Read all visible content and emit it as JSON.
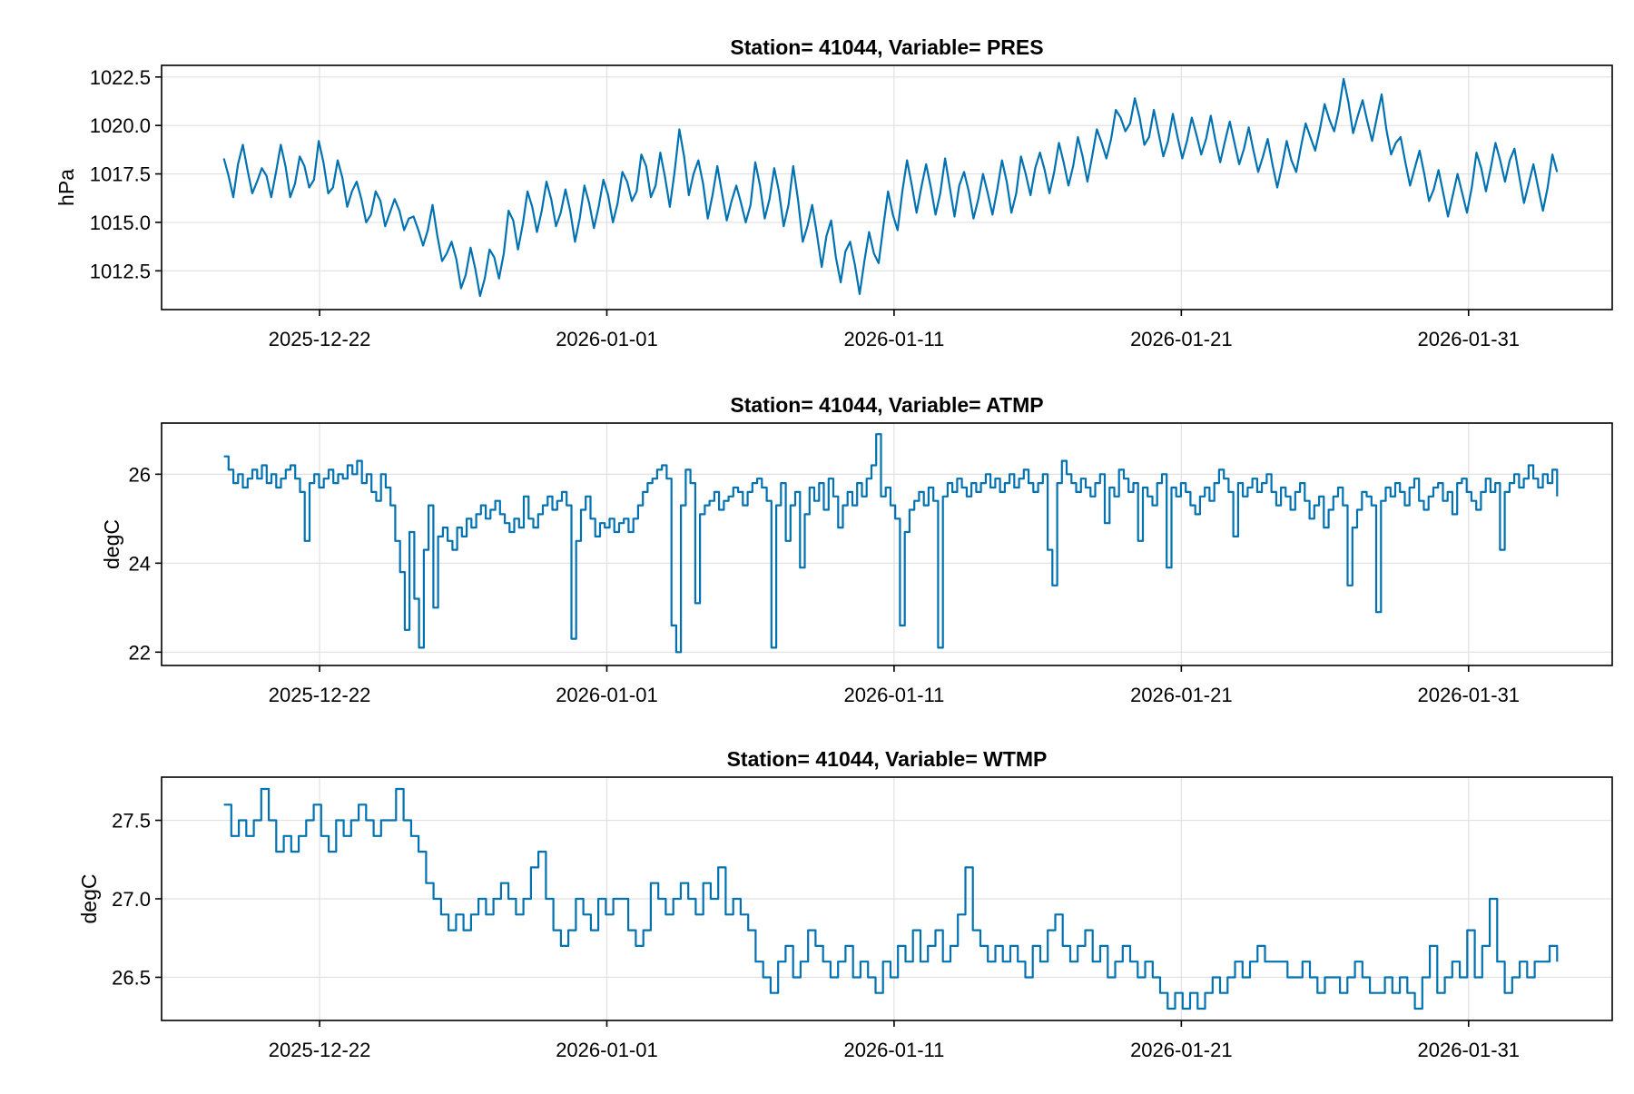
{
  "chart_data": [
    {
      "type": "line",
      "title": "Station= 41044, Variable= PRES",
      "ylabel": "hPa",
      "xlabel": "",
      "xlim": [
        "2025-12-16T12:00",
        "2026-02-05T00:00"
      ],
      "ylim": [
        1010.5,
        1023.1
      ],
      "xticks": [
        "2025-12-22",
        "2026-01-01",
        "2026-01-11",
        "2026-01-21",
        "2026-01-31"
      ],
      "yticks": [
        "1012.5",
        "1015.0",
        "1017.5",
        "1020.0",
        "1022.5"
      ],
      "ytick_values": [
        1012.5,
        1015.0,
        1017.5,
        1020.0,
        1022.5
      ],
      "grid": true,
      "step": false,
      "data_start": "2025-12-18T16:00",
      "data_end": "2026-02-03T02:00",
      "sample_hours": 3,
      "color": "#0072b2",
      "values": [
        1018.3,
        1017.4,
        1016.3,
        1018.0,
        1019.0,
        1017.7,
        1016.5,
        1017.1,
        1017.8,
        1017.4,
        1016.3,
        1017.6,
        1019.0,
        1017.9,
        1016.3,
        1017.0,
        1018.4,
        1017.9,
        1016.8,
        1017.2,
        1019.2,
        1018.1,
        1016.5,
        1016.8,
        1018.2,
        1017.3,
        1015.8,
        1016.6,
        1017.1,
        1016.2,
        1015.0,
        1015.4,
        1016.6,
        1016.1,
        1014.8,
        1015.5,
        1016.2,
        1015.6,
        1014.6,
        1015.2,
        1015.3,
        1014.6,
        1013.8,
        1014.6,
        1015.9,
        1014.3,
        1013.0,
        1013.4,
        1014.0,
        1013.1,
        1011.6,
        1012.3,
        1013.7,
        1012.6,
        1011.2,
        1012.1,
        1013.6,
        1013.2,
        1012.1,
        1013.4,
        1015.6,
        1015.1,
        1013.6,
        1014.9,
        1016.6,
        1015.8,
        1014.5,
        1015.6,
        1017.1,
        1016.2,
        1014.8,
        1015.5,
        1016.7,
        1015.6,
        1014.0,
        1015.2,
        1016.9,
        1016.0,
        1014.7,
        1015.8,
        1017.2,
        1016.4,
        1015.0,
        1016.0,
        1017.6,
        1017.1,
        1016.1,
        1016.6,
        1018.5,
        1017.9,
        1016.3,
        1016.9,
        1018.6,
        1017.3,
        1015.8,
        1017.6,
        1019.8,
        1018.4,
        1016.4,
        1017.5,
        1018.2,
        1017.0,
        1015.2,
        1016.4,
        1017.9,
        1016.5,
        1015.1,
        1016.1,
        1016.9,
        1016.0,
        1015.0,
        1015.9,
        1018.1,
        1016.9,
        1015.2,
        1016.2,
        1017.8,
        1016.6,
        1014.8,
        1015.9,
        1017.9,
        1016.2,
        1014.0,
        1014.8,
        1015.9,
        1014.4,
        1012.7,
        1014.3,
        1015.1,
        1013.2,
        1011.9,
        1013.5,
        1014.0,
        1012.8,
        1011.3,
        1013.0,
        1014.5,
        1013.4,
        1012.9,
        1014.8,
        1016.6,
        1015.4,
        1014.6,
        1016.6,
        1018.2,
        1016.9,
        1015.5,
        1016.8,
        1018.0,
        1016.8,
        1015.4,
        1016.5,
        1018.3,
        1016.8,
        1015.3,
        1016.9,
        1017.6,
        1016.6,
        1015.2,
        1016.2,
        1017.5,
        1016.5,
        1015.4,
        1016.7,
        1018.2,
        1017.1,
        1015.5,
        1016.5,
        1018.4,
        1017.5,
        1016.4,
        1017.8,
        1018.6,
        1017.7,
        1016.5,
        1017.6,
        1019.1,
        1018.1,
        1016.9,
        1017.9,
        1019.4,
        1018.4,
        1017.1,
        1018.4,
        1019.8,
        1019.1,
        1018.3,
        1019.3,
        1020.8,
        1020.4,
        1019.7,
        1020.1,
        1021.4,
        1020.4,
        1019.0,
        1019.4,
        1020.8,
        1019.6,
        1018.4,
        1019.2,
        1020.6,
        1019.4,
        1018.3,
        1019.2,
        1020.4,
        1019.5,
        1018.5,
        1019.3,
        1020.5,
        1019.2,
        1018.1,
        1019.2,
        1020.2,
        1019.1,
        1018.0,
        1018.8,
        1019.9,
        1018.7,
        1017.6,
        1018.4,
        1019.3,
        1018.0,
        1016.8,
        1017.9,
        1019.2,
        1018.2,
        1017.6,
        1018.9,
        1020.1,
        1019.4,
        1018.7,
        1019.8,
        1021.1,
        1020.3,
        1019.7,
        1020.8,
        1022.4,
        1021.2,
        1019.6,
        1020.5,
        1021.3,
        1020.2,
        1019.2,
        1020.4,
        1021.6,
        1019.8,
        1018.5,
        1019.1,
        1019.4,
        1018.1,
        1016.9,
        1017.8,
        1018.7,
        1017.5,
        1016.1,
        1016.7,
        1017.7,
        1016.5,
        1015.3,
        1016.4,
        1017.5,
        1016.5,
        1015.5,
        1016.8,
        1018.6,
        1017.8,
        1016.6,
        1017.8,
        1019.1,
        1018.2,
        1017.1,
        1018.2,
        1018.8,
        1017.4,
        1016.0,
        1017.0,
        1018.0,
        1016.8,
        1015.6,
        1016.8,
        1018.5,
        1017.6
      ]
    },
    {
      "type": "line",
      "title": "Station= 41044, Variable= ATMP",
      "ylabel": "degC",
      "xlabel": "",
      "xlim": [
        "2025-12-16T12:00",
        "2026-02-05T00:00"
      ],
      "ylim": [
        21.7,
        27.15
      ],
      "xticks": [
        "2025-12-22",
        "2026-01-01",
        "2026-01-11",
        "2026-01-21",
        "2026-01-31"
      ],
      "yticks": [
        "22",
        "24",
        "26"
      ],
      "ytick_values": [
        22,
        24,
        26
      ],
      "grid": true,
      "step": true,
      "data_start": "2025-12-18T16:00",
      "data_end": "2026-02-03T02:00",
      "sample_hours": 3,
      "color": "#0072b2",
      "values": [
        26.4,
        26.1,
        25.8,
        26.0,
        25.7,
        25.9,
        26.1,
        25.9,
        26.2,
        25.8,
        26.0,
        25.7,
        25.9,
        26.1,
        26.2,
        25.9,
        25.6,
        24.5,
        25.8,
        26.0,
        25.7,
        25.9,
        26.1,
        25.8,
        26.0,
        25.9,
        26.2,
        26.0,
        26.3,
        25.8,
        26.0,
        25.6,
        25.4,
        26.0,
        25.7,
        25.3,
        24.5,
        23.8,
        22.5,
        24.7,
        23.2,
        22.1,
        24.3,
        25.3,
        23.0,
        24.6,
        24.8,
        24.5,
        24.3,
        24.8,
        24.6,
        25.0,
        24.8,
        25.1,
        25.3,
        25.0,
        25.2,
        25.4,
        25.1,
        24.9,
        24.7,
        25.0,
        24.8,
        25.5,
        25.0,
        24.8,
        25.1,
        25.3,
        25.5,
        25.2,
        25.4,
        25.6,
        25.3,
        22.3,
        24.5,
        25.2,
        25.5,
        25.0,
        24.6,
        24.9,
        24.8,
        25.0,
        24.7,
        24.9,
        25.0,
        24.7,
        25.0,
        25.3,
        25.6,
        25.8,
        25.9,
        26.1,
        26.2,
        25.9,
        22.6,
        22.0,
        25.3,
        26.1,
        25.8,
        23.1,
        25.1,
        25.3,
        25.4,
        25.6,
        25.2,
        25.4,
        25.5,
        25.7,
        25.6,
        25.3,
        25.6,
        25.8,
        25.9,
        25.7,
        25.4,
        22.1,
        25.3,
        25.8,
        24.5,
        25.3,
        25.6,
        23.9,
        25.1,
        25.7,
        25.4,
        25.8,
        25.2,
        25.9,
        25.5,
        24.8,
        25.3,
        25.6,
        25.3,
        25.8,
        25.5,
        25.9,
        26.2,
        26.9,
        25.5,
        25.7,
        25.3,
        25.0,
        22.6,
        24.7,
        25.2,
        25.4,
        25.6,
        25.3,
        25.7,
        25.4,
        22.1,
        25.5,
        25.8,
        25.6,
        25.9,
        25.7,
        25.5,
        25.8,
        25.6,
        25.8,
        26.0,
        25.7,
        25.9,
        25.6,
        25.8,
        26.0,
        25.7,
        25.9,
        26.1,
        25.8,
        25.6,
        25.8,
        26.0,
        24.3,
        23.5,
        25.8,
        26.3,
        26.0,
        25.8,
        25.6,
        25.9,
        25.7,
        25.5,
        25.8,
        26.0,
        24.9,
        25.7,
        25.5,
        26.1,
        25.9,
        25.6,
        25.8,
        24.5,
        25.7,
        25.5,
        25.3,
        25.8,
        26.0,
        23.9,
        25.7,
        25.5,
        25.8,
        25.6,
        25.3,
        25.1,
        25.5,
        25.7,
        25.4,
        25.8,
        26.1,
        25.9,
        25.6,
        24.6,
        25.8,
        25.5,
        25.7,
        25.9,
        25.6,
        25.8,
        26.0,
        25.6,
        25.3,
        25.7,
        25.5,
        25.2,
        25.6,
        25.8,
        25.4,
        25.0,
        25.3,
        25.5,
        24.8,
        25.2,
        25.5,
        25.7,
        25.3,
        23.5,
        24.8,
        25.2,
        25.6,
        25.5,
        25.3,
        22.9,
        25.4,
        25.7,
        25.5,
        25.8,
        25.6,
        25.3,
        25.7,
        25.9,
        25.4,
        25.2,
        25.5,
        25.7,
        25.8,
        25.4,
        25.6,
        25.1,
        25.8,
        25.9,
        25.6,
        25.4,
        25.2,
        25.6,
        25.9,
        25.6,
        25.8,
        24.3,
        25.6,
        25.8,
        26.0,
        25.7,
        25.9,
        26.2,
        25.9,
        25.7,
        26.0,
        25.8,
        26.1,
        25.5
      ]
    },
    {
      "type": "line",
      "title": "Station= 41044, Variable= WTMP",
      "ylabel": "degC",
      "xlabel": "",
      "xlim": [
        "2025-12-16T12:00",
        "2026-02-05T00:00"
      ],
      "ylim": [
        26.225,
        27.775
      ],
      "xticks": [
        "2025-12-22",
        "2026-01-01",
        "2026-01-11",
        "2026-01-21",
        "2026-01-31"
      ],
      "yticks": [
        "26.5",
        "27.0",
        "27.5"
      ],
      "ytick_values": [
        26.5,
        27.0,
        27.5
      ],
      "grid": true,
      "step": true,
      "data_start": "2025-12-18T16:00",
      "data_end": "2026-02-03T02:00",
      "sample_hours": 3,
      "color": "#0072b2",
      "values": [
        27.6,
        27.4,
        27.5,
        27.4,
        27.5,
        27.7,
        27.5,
        27.3,
        27.4,
        27.3,
        27.4,
        27.5,
        27.6,
        27.4,
        27.3,
        27.5,
        27.4,
        27.5,
        27.6,
        27.5,
        27.4,
        27.5,
        27.5,
        27.7,
        27.5,
        27.4,
        27.3,
        27.1,
        27.0,
        26.9,
        26.8,
        26.9,
        26.8,
        26.9,
        27.0,
        26.9,
        27.0,
        27.1,
        27.0,
        26.9,
        27.0,
        27.2,
        27.3,
        27.0,
        26.8,
        26.7,
        26.8,
        27.0,
        26.9,
        26.8,
        27.0,
        26.9,
        27.0,
        27.0,
        26.8,
        26.7,
        26.8,
        27.1,
        27.0,
        26.9,
        27.0,
        27.1,
        27.0,
        26.9,
        27.1,
        27.0,
        27.2,
        26.9,
        27.0,
        26.9,
        26.8,
        26.6,
        26.5,
        26.4,
        26.6,
        26.7,
        26.5,
        26.6,
        26.8,
        26.7,
        26.6,
        26.5,
        26.6,
        26.7,
        26.5,
        26.6,
        26.5,
        26.4,
        26.6,
        26.5,
        26.7,
        26.6,
        26.8,
        26.6,
        26.7,
        26.8,
        26.6,
        26.7,
        26.9,
        27.2,
        26.8,
        26.7,
        26.6,
        26.7,
        26.6,
        26.7,
        26.6,
        26.5,
        26.7,
        26.6,
        26.8,
        26.9,
        26.7,
        26.6,
        26.7,
        26.8,
        26.6,
        26.7,
        26.5,
        26.6,
        26.7,
        26.6,
        26.5,
        26.6,
        26.5,
        26.4,
        26.3,
        26.4,
        26.3,
        26.4,
        26.3,
        26.4,
        26.5,
        26.4,
        26.5,
        26.6,
        26.5,
        26.6,
        26.7,
        26.6,
        26.6,
        26.6,
        26.5,
        26.5,
        26.6,
        26.5,
        26.4,
        26.5,
        26.5,
        26.4,
        26.5,
        26.6,
        26.5,
        26.4,
        26.4,
        26.5,
        26.4,
        26.5,
        26.4,
        26.3,
        26.5,
        26.7,
        26.4,
        26.5,
        26.6,
        26.5,
        26.8,
        26.5,
        26.7,
        27.0,
        26.6,
        26.4,
        26.5,
        26.6,
        26.5,
        26.6,
        26.6,
        26.7,
        26.6
      ]
    }
  ]
}
